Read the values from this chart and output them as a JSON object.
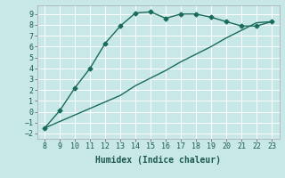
{
  "xlabel": "Humidex (Indice chaleur)",
  "background_color": "#c8e8e8",
  "grid_color": "#aed4d4",
  "line_color": "#1a6b5a",
  "curve1_x": [
    8,
    9,
    10,
    11,
    12,
    13,
    14,
    15,
    16,
    17,
    18,
    19,
    20,
    21,
    22,
    23
  ],
  "curve1_y": [
    -1.5,
    0.1,
    2.2,
    4.0,
    6.3,
    7.9,
    9.1,
    9.2,
    8.6,
    9.0,
    9.0,
    8.7,
    8.3,
    7.9,
    7.9,
    8.3
  ],
  "curve2_x": [
    8,
    9,
    10,
    11,
    12,
    13,
    14,
    15,
    16,
    17,
    18,
    19,
    20,
    21,
    22,
    23
  ],
  "curve2_y": [
    -1.5,
    -0.9,
    -0.3,
    0.3,
    0.9,
    1.5,
    2.4,
    3.1,
    3.8,
    4.6,
    5.3,
    6.0,
    6.8,
    7.5,
    8.2,
    8.3
  ],
  "xlim": [
    7.5,
    23.5
  ],
  "ylim": [
    -2.5,
    9.8
  ],
  "yticks": [
    -2,
    -1,
    0,
    1,
    2,
    3,
    4,
    5,
    6,
    7,
    8,
    9
  ],
  "xticks": [
    8,
    9,
    10,
    11,
    12,
    13,
    14,
    15,
    16,
    17,
    18,
    19,
    20,
    21,
    22,
    23
  ],
  "marker": "D",
  "markersize": 2.5,
  "linewidth": 1.0,
  "tick_labelsize": 6,
  "xlabel_fontsize": 7
}
